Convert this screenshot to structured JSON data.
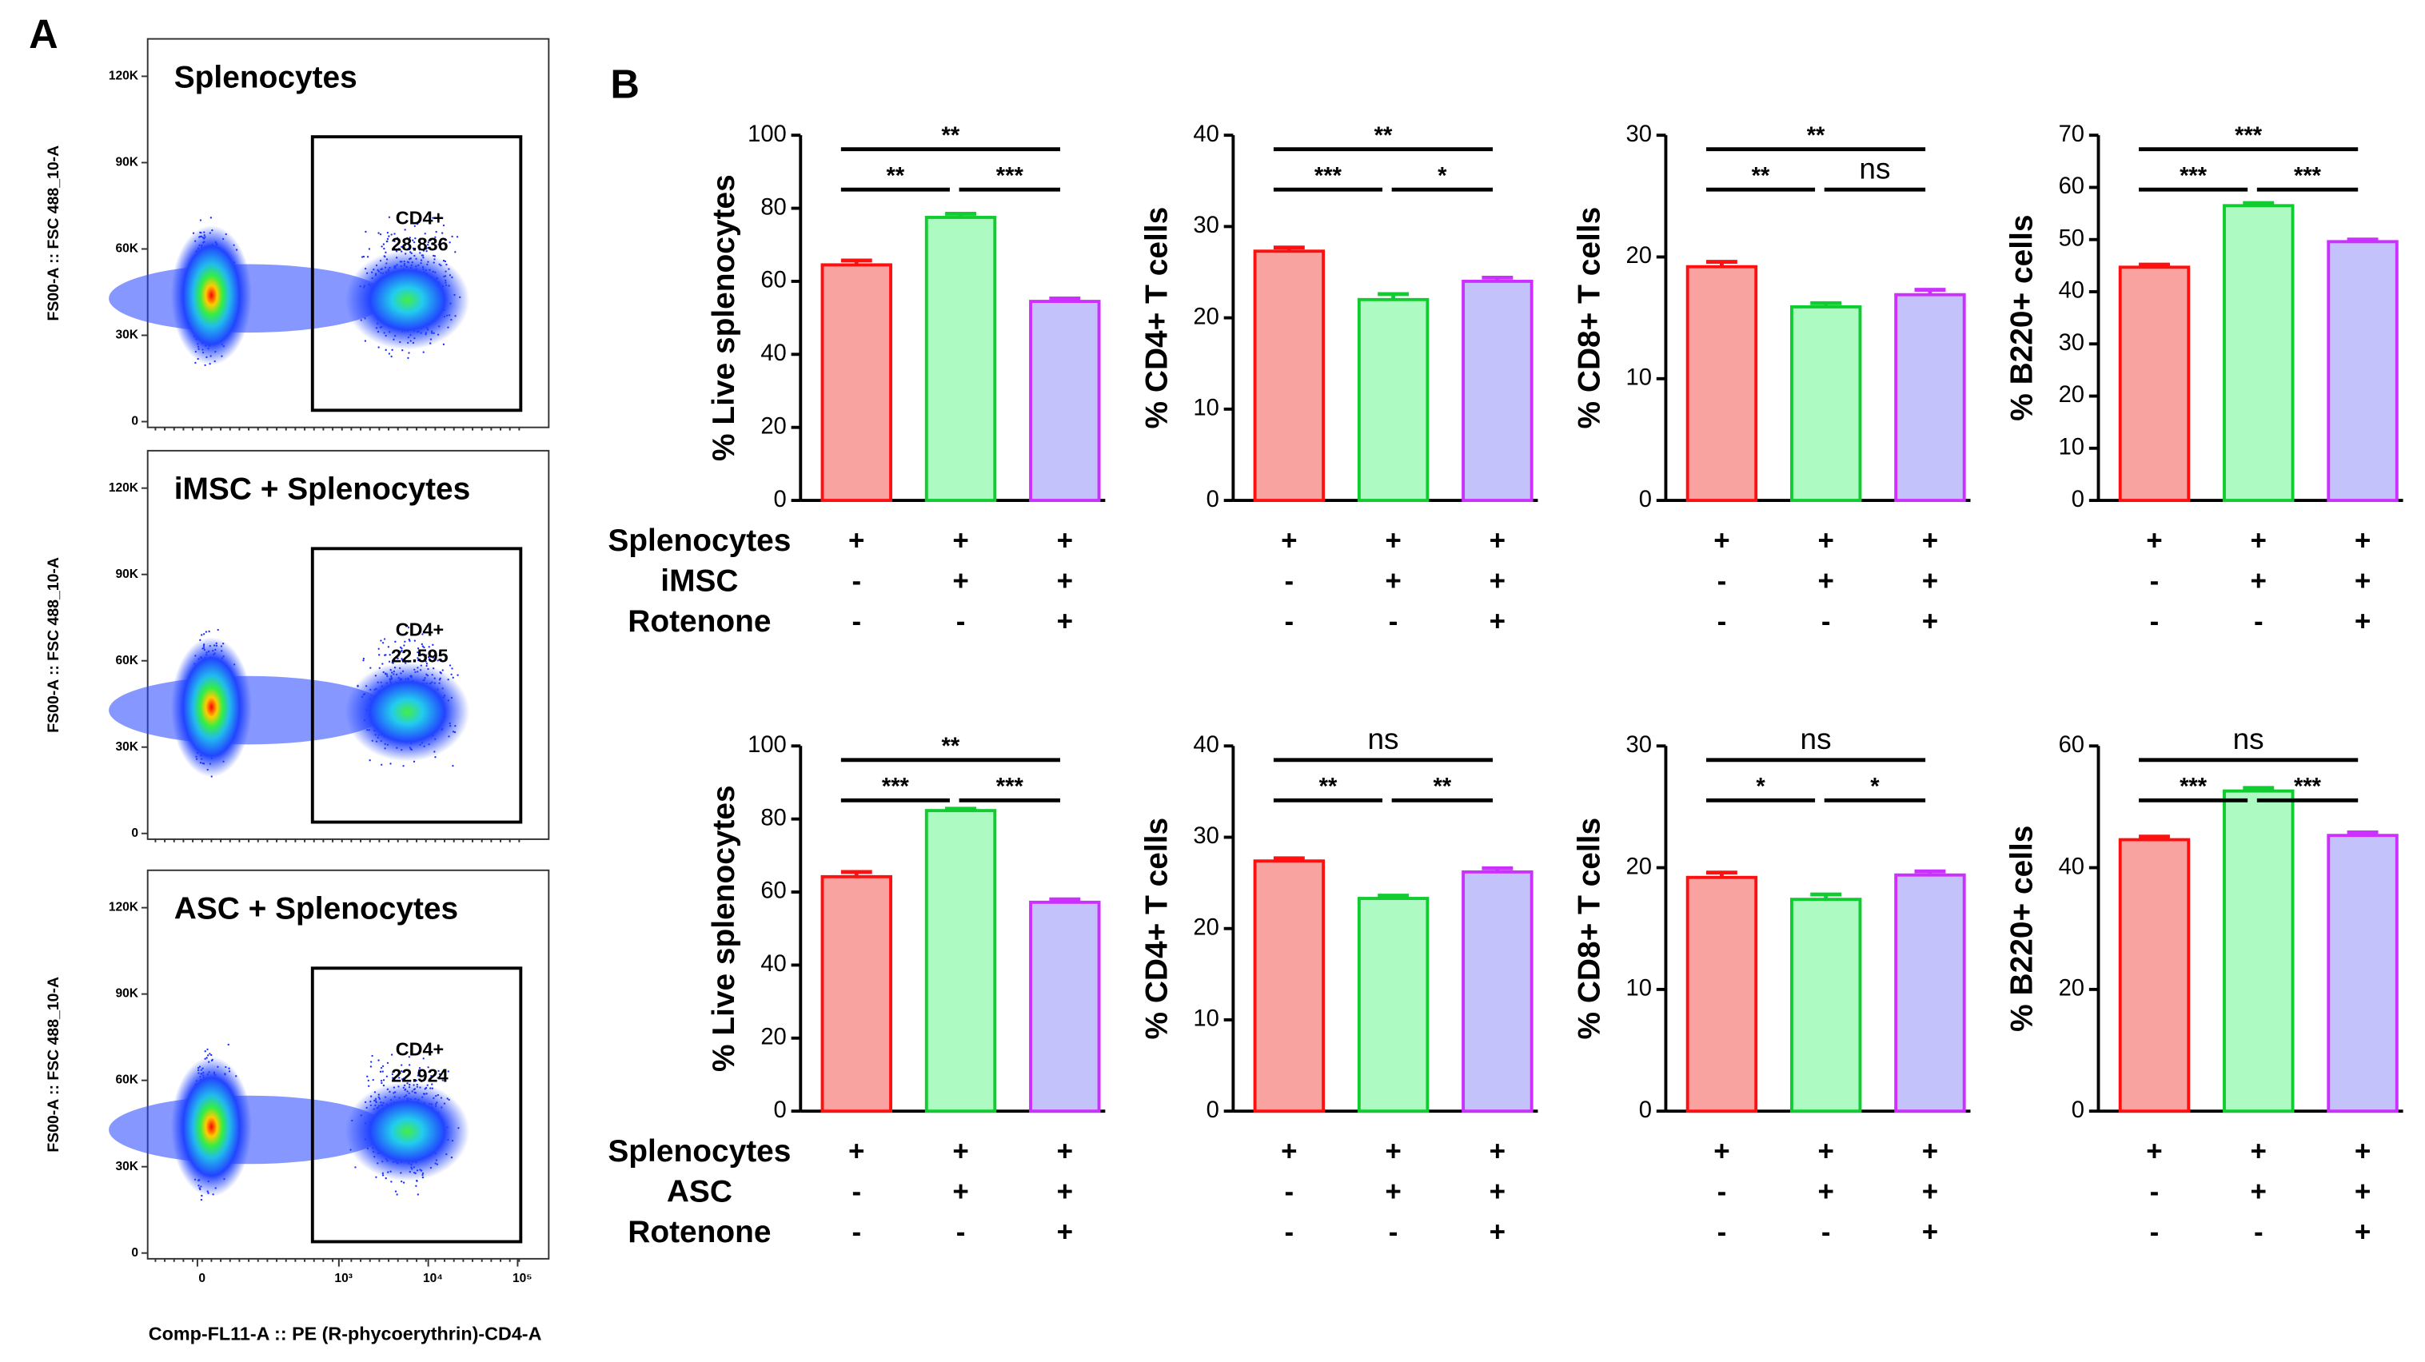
{
  "panel_labels": [
    "A",
    "B"
  ],
  "condition_rows": [
    [
      "Splenocytes",
      "iMSC",
      "Rotenone"
    ],
    [
      "Splenocytes",
      "ASC",
      "Rotenone"
    ]
  ],
  "chart_data": [
    {
      "type": "flow",
      "title": "Splenocytes",
      "ylabel": "FS00-A :: FSC 488_10-A",
      "ylim": [
        -2000,
        133000
      ],
      "yticks": [
        0,
        {
          "value": 30000,
          "label": "30K"
        },
        {
          "value": 60000,
          "label": "60K"
        },
        {
          "value": 90000,
          "label": "90K"
        },
        {
          "value": 120000,
          "label": "120K"
        }
      ],
      "gate": {
        "label": "CD4+",
        "value": 28.836
      }
    },
    {
      "type": "flow",
      "title": "iMSC + Splenocytes",
      "ylabel": "FS00-A :: FSC 488_10-A",
      "ylim": [
        -2000,
        133000
      ],
      "yticks": [
        0,
        {
          "value": 30000,
          "label": "30K"
        },
        {
          "value": 60000,
          "label": "60K"
        },
        {
          "value": 90000,
          "label": "90K"
        },
        {
          "value": 120000,
          "label": "120K"
        }
      ],
      "gate": {
        "label": "CD4+",
        "value": 22.595
      }
    },
    {
      "type": "flow",
      "title": "ASC + Splenocytes",
      "ylabel": "FS00-A :: FSC 488_10-A",
      "ylim": [
        -2000,
        133000
      ],
      "yticks": [
        0,
        {
          "value": 30000,
          "label": "30K"
        },
        {
          "value": 60000,
          "label": "60K"
        },
        {
          "value": 90000,
          "label": "90K"
        },
        {
          "value": 120000,
          "label": "120K"
        }
      ],
      "gate": {
        "label": "CD4+",
        "value": 22.924
      },
      "xlabel": "Comp-FL11-A :: PE (R-phycoerythrin)-CD4-A",
      "xscale": "biexponential",
      "xticks": [
        0,
        {
          "value": 1000,
          "label": "10³"
        },
        {
          "value": 10000,
          "label": "10⁴"
        },
        {
          "value": 100000,
          "label": "10⁵"
        }
      ]
    },
    {
      "type": "bar",
      "ylabel": "% Live splenocytes",
      "ylim": [
        0,
        100
      ],
      "yticks": [
        0,
        20,
        40,
        60,
        80,
        100
      ],
      "values": [
        64.5,
        77.5,
        54.5
      ],
      "errors": [
        1.2,
        1.0,
        0.8
      ],
      "colors": [
        "#f9a3a1",
        "#adfbc2",
        "#c3c2fb"
      ],
      "edgecolors": [
        "#ff1010",
        "#10cc30",
        "#cc30ff"
      ],
      "conditions": [
        [
          "+",
          "+",
          "+"
        ],
        [
          "-",
          "+",
          "+"
        ],
        [
          "-",
          "-",
          "+"
        ]
      ],
      "comparisons": [
        {
          "from": 0,
          "to": 1,
          "label": "**"
        },
        {
          "from": 1,
          "to": 2,
          "label": "***"
        },
        {
          "from": 0,
          "to": 2,
          "label": "**"
        }
      ]
    },
    {
      "type": "bar",
      "ylabel": "% CD4+ T cells",
      "ylim": [
        0,
        40
      ],
      "yticks": [
        0,
        10,
        20,
        30,
        40
      ],
      "values": [
        27.3,
        22.0,
        24.0
      ],
      "errors": [
        0.4,
        0.6,
        0.4
      ],
      "colors": [
        "#f9a3a1",
        "#adfbc2",
        "#c3c2fb"
      ],
      "edgecolors": [
        "#ff1010",
        "#10cc30",
        "#cc30ff"
      ],
      "conditions": [
        [
          "+",
          "+",
          "+"
        ],
        [
          "-",
          "+",
          "+"
        ],
        [
          "-",
          "-",
          "+"
        ]
      ],
      "comparisons": [
        {
          "from": 0,
          "to": 1,
          "label": "***"
        },
        {
          "from": 1,
          "to": 2,
          "label": "*"
        },
        {
          "from": 0,
          "to": 2,
          "label": "**"
        }
      ]
    },
    {
      "type": "bar",
      "ylabel": "% CD8+ T cells",
      "ylim": [
        0,
        30
      ],
      "yticks": [
        0,
        10,
        20,
        30
      ],
      "values": [
        19.2,
        15.9,
        16.9
      ],
      "errors": [
        0.4,
        0.3,
        0.4
      ],
      "colors": [
        "#f9a3a1",
        "#adfbc2",
        "#c3c2fb"
      ],
      "edgecolors": [
        "#ff1010",
        "#10cc30",
        "#cc30ff"
      ],
      "conditions": [
        [
          "+",
          "+",
          "+"
        ],
        [
          "-",
          "+",
          "+"
        ],
        [
          "-",
          "-",
          "+"
        ]
      ],
      "comparisons": [
        {
          "from": 0,
          "to": 1,
          "label": "**"
        },
        {
          "from": 1,
          "to": 2,
          "label": "ns"
        },
        {
          "from": 0,
          "to": 2,
          "label": "**"
        }
      ]
    },
    {
      "type": "bar",
      "ylabel": "% B220+ cells",
      "ylim": [
        0,
        70
      ],
      "yticks": [
        0,
        10,
        20,
        30,
        40,
        50,
        60,
        70
      ],
      "values": [
        44.7,
        56.5,
        49.6
      ],
      "errors": [
        0.5,
        0.5,
        0.4
      ],
      "colors": [
        "#f9a3a1",
        "#adfbc2",
        "#c3c2fb"
      ],
      "edgecolors": [
        "#ff1010",
        "#10cc30",
        "#cc30ff"
      ],
      "conditions": [
        [
          "+",
          "+",
          "+"
        ],
        [
          "-",
          "+",
          "+"
        ],
        [
          "-",
          "-",
          "+"
        ]
      ],
      "comparisons": [
        {
          "from": 0,
          "to": 1,
          "label": "***"
        },
        {
          "from": 1,
          "to": 2,
          "label": "***"
        },
        {
          "from": 0,
          "to": 2,
          "label": "***"
        }
      ]
    },
    {
      "type": "bar",
      "ylabel": "% Live splenocytes",
      "ylim": [
        0,
        100
      ],
      "yticks": [
        0,
        20,
        40,
        60,
        80,
        100
      ],
      "values": [
        64.2,
        82.3,
        57.2
      ],
      "errors": [
        1.3,
        0.5,
        0.8
      ],
      "colors": [
        "#f9a3a1",
        "#adfbc2",
        "#c3c2fb"
      ],
      "edgecolors": [
        "#ff1010",
        "#10cc30",
        "#cc30ff"
      ],
      "conditions": [
        [
          "+",
          "+",
          "+"
        ],
        [
          "-",
          "+",
          "+"
        ],
        [
          "-",
          "-",
          "+"
        ]
      ],
      "comparisons": [
        {
          "from": 0,
          "to": 1,
          "label": "***"
        },
        {
          "from": 1,
          "to": 2,
          "label": "***"
        },
        {
          "from": 0,
          "to": 2,
          "label": "**"
        }
      ]
    },
    {
      "type": "bar",
      "ylabel": "% CD4+ T cells",
      "ylim": [
        0,
        40
      ],
      "yticks": [
        0,
        10,
        20,
        30,
        40
      ],
      "values": [
        27.4,
        23.3,
        26.2
      ],
      "errors": [
        0.3,
        0.3,
        0.4
      ],
      "colors": [
        "#f9a3a1",
        "#adfbc2",
        "#c3c2fb"
      ],
      "edgecolors": [
        "#ff1010",
        "#10cc30",
        "#cc30ff"
      ],
      "conditions": [
        [
          "+",
          "+",
          "+"
        ],
        [
          "-",
          "+",
          "+"
        ],
        [
          "-",
          "-",
          "+"
        ]
      ],
      "comparisons": [
        {
          "from": 0,
          "to": 1,
          "label": "**"
        },
        {
          "from": 1,
          "to": 2,
          "label": "**"
        },
        {
          "from": 0,
          "to": 2,
          "label": "ns"
        }
      ]
    },
    {
      "type": "bar",
      "ylabel": "% CD8+ T cells",
      "ylim": [
        0,
        30
      ],
      "yticks": [
        0,
        10,
        20,
        30
      ],
      "values": [
        19.2,
        17.4,
        19.4
      ],
      "errors": [
        0.4,
        0.4,
        0.3
      ],
      "colors": [
        "#f9a3a1",
        "#adfbc2",
        "#c3c2fb"
      ],
      "edgecolors": [
        "#ff1010",
        "#10cc30",
        "#cc30ff"
      ],
      "conditions": [
        [
          "+",
          "+",
          "+"
        ],
        [
          "-",
          "+",
          "+"
        ],
        [
          "-",
          "-",
          "+"
        ]
      ],
      "comparisons": [
        {
          "from": 0,
          "to": 1,
          "label": "*"
        },
        {
          "from": 1,
          "to": 2,
          "label": "*"
        },
        {
          "from": 0,
          "to": 2,
          "label": "ns"
        }
      ]
    },
    {
      "type": "bar",
      "ylabel": "% B220+ cells",
      "ylim": [
        0,
        60
      ],
      "yticks": [
        0,
        20,
        40,
        60
      ],
      "values": [
        44.6,
        52.6,
        45.3
      ],
      "errors": [
        0.5,
        0.5,
        0.5
      ],
      "colors": [
        "#f9a3a1",
        "#adfbc2",
        "#c3c2fb"
      ],
      "edgecolors": [
        "#ff1010",
        "#10cc30",
        "#cc30ff"
      ],
      "conditions": [
        [
          "+",
          "+",
          "+"
        ],
        [
          "-",
          "+",
          "+"
        ],
        [
          "-",
          "-",
          "+"
        ]
      ],
      "comparisons": [
        {
          "from": 0,
          "to": 1,
          "label": "***"
        },
        {
          "from": 1,
          "to": 2,
          "label": "***"
        },
        {
          "from": 0,
          "to": 2,
          "label": "ns"
        }
      ]
    }
  ]
}
